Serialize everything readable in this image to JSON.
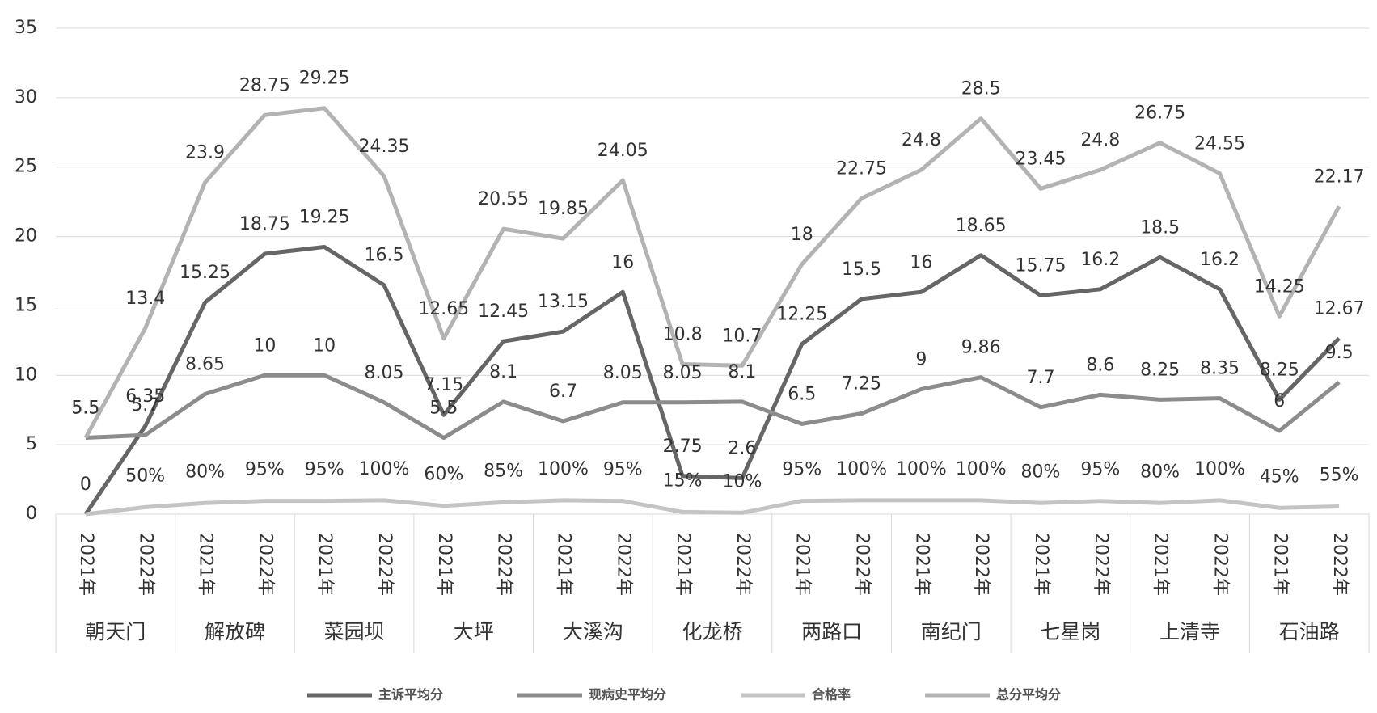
{
  "chart_data": {
    "type": "line",
    "categories": [
      "2021年",
      "2022年",
      "2021年",
      "2022年",
      "2021年",
      "2022年",
      "2021年",
      "2022年",
      "2021年",
      "2022年",
      "2021年",
      "2022年",
      "2021年",
      "2022年",
      "2021年",
      "2022年",
      "2021年",
      "2022年",
      "2021年",
      "2022年",
      "2021年",
      "2022年"
    ],
    "groups": [
      "朝天门",
      "解放碑",
      "菜园坝",
      "大坪",
      "大溪沟",
      "化龙桥",
      "两路口",
      "南纪门",
      "七星岗",
      "上清寺",
      "石油路"
    ],
    "series": [
      {
        "name": "主诉平均分",
        "color": "#666666",
        "values": [
          0,
          6.35,
          15.25,
          18.75,
          19.25,
          16.5,
          7.15,
          12.45,
          13.15,
          16,
          2.75,
          2.6,
          12.25,
          15.5,
          16,
          18.65,
          15.75,
          16.2,
          18.5,
          16.2,
          8.25,
          12.67
        ]
      },
      {
        "name": "现病史平均分",
        "color": "#8c8c8c",
        "values": [
          5.5,
          5.7,
          8.65,
          10,
          10,
          8.05,
          5.5,
          8.1,
          6.7,
          8.05,
          8.05,
          8.1,
          6.5,
          7.25,
          9,
          9.86,
          7.7,
          8.6,
          8.25,
          8.35,
          6,
          9.5
        ]
      },
      {
        "name": "合格率",
        "color": "#c4c4c4",
        "values": [
          0,
          0.5,
          0.8,
          0.95,
          0.95,
          1,
          0.6,
          0.85,
          1,
          0.95,
          0.15,
          0.1,
          0.95,
          1,
          1,
          1,
          0.8,
          0.95,
          0.8,
          1,
          0.45,
          0.55
        ],
        "value_labels": [
          null,
          "50%",
          "80%",
          "95%",
          "95%",
          "100%",
          "60%",
          "85%",
          "100%",
          "95%",
          "15%",
          "10%",
          "95%",
          "100%",
          "100%",
          "100%",
          "80%",
          "95%",
          "80%",
          "100%",
          "45%",
          "55%"
        ]
      },
      {
        "name": "总分平均分",
        "color": "#b3b3b3",
        "values": [
          5.5,
          13.4,
          23.9,
          28.75,
          29.25,
          24.35,
          12.65,
          20.55,
          19.85,
          24.05,
          10.8,
          10.7,
          18,
          22.75,
          24.8,
          28.5,
          23.45,
          24.8,
          26.75,
          24.55,
          14.25,
          22.17
        ]
      }
    ],
    "ylim": [
      0,
      35
    ],
    "yticks": [
      0,
      5,
      10,
      15,
      20,
      25,
      30,
      35
    ],
    "grid": true,
    "legend": "bottom"
  }
}
